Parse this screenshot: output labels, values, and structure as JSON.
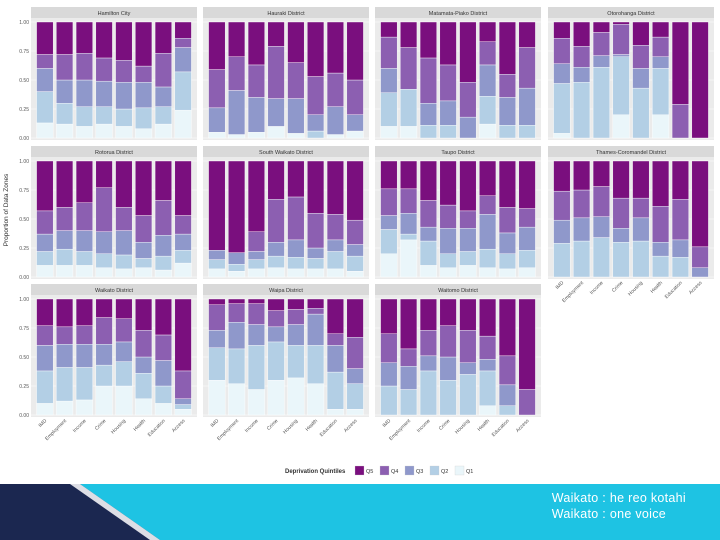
{
  "chart_data": {
    "type": "bar",
    "stacked": true,
    "layout": "faceted 4x3 grid",
    "ylabel": "Proportion of Data Zones",
    "yticks": [
      "0.00",
      "0.25",
      "0.50",
      "0.75",
      "1.00"
    ],
    "ylim": [
      0,
      1
    ],
    "categories": [
      "IMD",
      "Employment",
      "Income",
      "Crime",
      "Housing",
      "Health",
      "Education",
      "Access"
    ],
    "legend": {
      "title": "Deprivation Quintiles",
      "position": "bottom",
      "entries": [
        {
          "label": "Q5",
          "color": "#7a0f7e"
        },
        {
          "label": "Q4",
          "color": "#8c5fb1"
        },
        {
          "label": "Q3",
          "color": "#8f98cb"
        },
        {
          "label": "Q2",
          "color": "#b3cfe5"
        },
        {
          "label": "Q1",
          "color": "#eaf6fa"
        }
      ]
    },
    "facets": [
      {
        "title": "Hamilton City",
        "values": [
          [
            0.13,
            0.27,
            0.2,
            0.12,
            0.28
          ],
          [
            0.12,
            0.18,
            0.2,
            0.22,
            0.28
          ],
          [
            0.1,
            0.17,
            0.23,
            0.23,
            0.27
          ],
          [
            0.12,
            0.15,
            0.22,
            0.2,
            0.31
          ],
          [
            0.1,
            0.15,
            0.23,
            0.19,
            0.33
          ],
          [
            0.08,
            0.18,
            0.22,
            0.14,
            0.38
          ],
          [
            0.12,
            0.15,
            0.17,
            0.29,
            0.27
          ],
          [
            0.24,
            0.33,
            0.21,
            0.08,
            0.14
          ]
        ]
      },
      {
        "title": "Hauraki District",
        "values": [
          [
            0.05,
            0.0,
            0.21,
            0.33,
            0.41
          ],
          [
            0.03,
            0.0,
            0.38,
            0.29,
            0.3
          ],
          [
            0.05,
            0.0,
            0.3,
            0.28,
            0.37
          ],
          [
            0.1,
            0.0,
            0.24,
            0.45,
            0.21
          ],
          [
            0.04,
            0.0,
            0.3,
            0.31,
            0.35
          ],
          [
            0.0,
            0.06,
            0.14,
            0.33,
            0.47
          ],
          [
            0.03,
            0.0,
            0.24,
            0.29,
            0.44
          ],
          [
            0.06,
            0.0,
            0.14,
            0.3,
            0.5
          ]
        ]
      },
      {
        "title": "Matamata-Piako District",
        "values": [
          [
            0.1,
            0.29,
            0.21,
            0.27,
            0.13
          ],
          [
            0.1,
            0.32,
            0.0,
            0.36,
            0.22
          ],
          [
            0.0,
            0.11,
            0.19,
            0.39,
            0.31
          ],
          [
            0.0,
            0.11,
            0.21,
            0.31,
            0.37
          ],
          [
            0.0,
            0.0,
            0.18,
            0.3,
            0.52
          ],
          [
            0.12,
            0.24,
            0.27,
            0.2,
            0.17
          ],
          [
            0.0,
            0.11,
            0.24,
            0.2,
            0.45
          ],
          [
            0.0,
            0.11,
            0.32,
            0.35,
            0.22
          ]
        ]
      },
      {
        "title": "Otorohanga District",
        "values": [
          [
            0.04,
            0.43,
            0.17,
            0.22,
            0.14
          ],
          [
            0.0,
            0.48,
            0.13,
            0.18,
            0.21
          ],
          [
            0.0,
            0.61,
            0.1,
            0.2,
            0.09
          ],
          [
            0.2,
            0.5,
            0.02,
            0.26,
            0.02
          ],
          [
            0.0,
            0.43,
            0.17,
            0.2,
            0.2
          ],
          [
            0.2,
            0.4,
            0.1,
            0.17,
            0.13
          ],
          [
            0.0,
            0.0,
            0.0,
            0.29,
            0.71
          ],
          [
            0.0,
            0.0,
            0.0,
            0.0,
            1.0
          ]
        ]
      },
      {
        "title": "Rotorua District",
        "values": [
          [
            0.1,
            0.12,
            0.15,
            0.2,
            0.43
          ],
          [
            0.1,
            0.14,
            0.16,
            0.2,
            0.4
          ],
          [
            0.1,
            0.12,
            0.18,
            0.24,
            0.36
          ],
          [
            0.08,
            0.12,
            0.19,
            0.38,
            0.23
          ],
          [
            0.07,
            0.12,
            0.21,
            0.2,
            0.4
          ],
          [
            0.08,
            0.08,
            0.14,
            0.23,
            0.47
          ],
          [
            0.06,
            0.12,
            0.18,
            0.3,
            0.34
          ],
          [
            0.12,
            0.11,
            0.14,
            0.16,
            0.47
          ]
        ]
      },
      {
        "title": "South Waikato District",
        "values": [
          [
            0.07,
            0.08,
            0.08,
            0.0,
            0.77
          ],
          [
            0.05,
            0.06,
            0.1,
            0.0,
            0.79
          ],
          [
            0.07,
            0.08,
            0.07,
            0.17,
            0.61
          ],
          [
            0.08,
            0.1,
            0.12,
            0.37,
            0.33
          ],
          [
            0.07,
            0.1,
            0.15,
            0.37,
            0.31
          ],
          [
            0.07,
            0.09,
            0.09,
            0.3,
            0.45
          ],
          [
            0.07,
            0.15,
            0.1,
            0.22,
            0.46
          ],
          [
            0.05,
            0.13,
            0.1,
            0.21,
            0.51
          ]
        ]
      },
      {
        "title": "Taupo District",
        "values": [
          [
            0.2,
            0.21,
            0.12,
            0.23,
            0.24
          ],
          [
            0.32,
            0.05,
            0.18,
            0.21,
            0.24
          ],
          [
            0.1,
            0.21,
            0.12,
            0.23,
            0.34
          ],
          [
            0.08,
            0.12,
            0.22,
            0.2,
            0.38
          ],
          [
            0.1,
            0.12,
            0.2,
            0.15,
            0.43
          ],
          [
            0.08,
            0.16,
            0.3,
            0.16,
            0.3
          ],
          [
            0.07,
            0.13,
            0.18,
            0.22,
            0.4
          ],
          [
            0.08,
            0.15,
            0.2,
            0.16,
            0.41
          ]
        ]
      },
      {
        "title": "Thames-Coromandel District",
        "values": [
          [
            0.0,
            0.29,
            0.2,
            0.25,
            0.26
          ],
          [
            0.0,
            0.31,
            0.2,
            0.24,
            0.25
          ],
          [
            0.0,
            0.34,
            0.18,
            0.26,
            0.22
          ],
          [
            0.0,
            0.3,
            0.12,
            0.26,
            0.32
          ],
          [
            0.0,
            0.31,
            0.2,
            0.17,
            0.32
          ],
          [
            0.0,
            0.18,
            0.12,
            0.31,
            0.39
          ],
          [
            0.0,
            0.17,
            0.15,
            0.35,
            0.33
          ],
          [
            0.0,
            0.0,
            0.08,
            0.18,
            0.74
          ]
        ]
      },
      {
        "title": "Waikato District",
        "values": [
          [
            0.1,
            0.28,
            0.22,
            0.17,
            0.23
          ],
          [
            0.12,
            0.29,
            0.2,
            0.15,
            0.24
          ],
          [
            0.13,
            0.28,
            0.2,
            0.16,
            0.23
          ],
          [
            0.25,
            0.18,
            0.18,
            0.23,
            0.16
          ],
          [
            0.25,
            0.21,
            0.17,
            0.2,
            0.17
          ],
          [
            0.14,
            0.22,
            0.14,
            0.23,
            0.27
          ],
          [
            0.1,
            0.15,
            0.22,
            0.22,
            0.31
          ],
          [
            0.05,
            0.04,
            0.05,
            0.24,
            0.62
          ]
        ]
      },
      {
        "title": "Waipa District",
        "values": [
          [
            0.3,
            0.28,
            0.15,
            0.22,
            0.05
          ],
          [
            0.27,
            0.3,
            0.23,
            0.16,
            0.04
          ],
          [
            0.22,
            0.38,
            0.18,
            0.18,
            0.04
          ],
          [
            0.3,
            0.33,
            0.13,
            0.14,
            0.1
          ],
          [
            0.32,
            0.28,
            0.18,
            0.13,
            0.09
          ],
          [
            0.27,
            0.33,
            0.27,
            0.05,
            0.08
          ],
          [
            0.05,
            0.32,
            0.23,
            0.1,
            0.3
          ],
          [
            0.05,
            0.22,
            0.13,
            0.27,
            0.33
          ]
        ]
      },
      {
        "title": "Waitomo District",
        "values": [
          [
            0.0,
            0.25,
            0.2,
            0.25,
            0.3
          ],
          [
            0.0,
            0.22,
            0.2,
            0.15,
            0.43
          ],
          [
            0.0,
            0.38,
            0.13,
            0.22,
            0.27
          ],
          [
            0.0,
            0.3,
            0.2,
            0.27,
            0.23
          ],
          [
            0.0,
            0.35,
            0.1,
            0.28,
            0.27
          ],
          [
            0.08,
            0.3,
            0.1,
            0.2,
            0.32
          ],
          [
            0.0,
            0.08,
            0.18,
            0.25,
            0.49
          ],
          [
            0.0,
            0.0,
            0.0,
            0.22,
            0.78
          ]
        ]
      }
    ]
  },
  "footer": {
    "tagline_line1": "Waikato : he reo kotahi",
    "tagline_line2": "Waikato : one voice"
  }
}
